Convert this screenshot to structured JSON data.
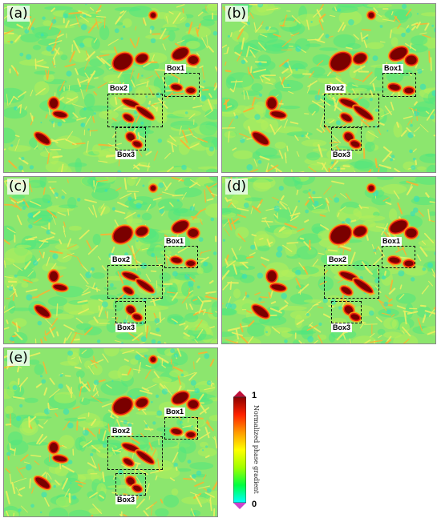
{
  "panels": [
    {
      "label": "(a)",
      "boxes": [
        "Box1",
        "Box2",
        "Box3"
      ]
    },
    {
      "label": "(b)",
      "boxes": [
        "Box1",
        "Box2",
        "Box3"
      ]
    },
    {
      "label": "(c)",
      "boxes": [
        "Box1",
        "Box2",
        "Box3"
      ]
    },
    {
      "label": "(d)",
      "boxes": [
        "Box1",
        "Box2",
        "Box3"
      ]
    },
    {
      "label": "(e)",
      "boxes": [
        "Box1",
        "Box2",
        "Box3"
      ]
    }
  ],
  "colorbar": {
    "title": "Normalized phase gradient",
    "max_label": "1",
    "min_label": "0",
    "colors": [
      "#00ffff",
      "#00ff40",
      "#a0ff00",
      "#ffff00",
      "#ff9900",
      "#ff2200",
      "#8b0000"
    ],
    "over_color": "#c0103a",
    "under_color": "#cc44cc"
  },
  "palette": {
    "background": "#8ce66e",
    "ridge": "#f0f060",
    "anomaly_dark": "#7a0000",
    "anomaly_red": "#e81a10",
    "anomaly_orange": "#ff9a10"
  }
}
